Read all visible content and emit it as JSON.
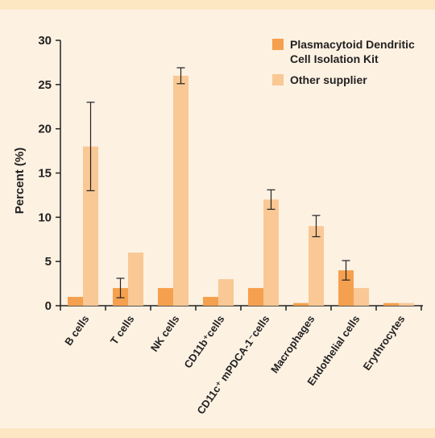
{
  "colors": {
    "background": "#fdf1e2",
    "border_band": "#fde6c2",
    "series_1": "#f5a04e",
    "series_2": "#f9c894",
    "axis": "#222222"
  },
  "chart_data": {
    "type": "bar",
    "ylabel": "Percent (%)",
    "xlabel": "",
    "ylim": [
      0,
      30
    ],
    "yticks": [
      0,
      5,
      10,
      15,
      20,
      25,
      30
    ],
    "grid": false,
    "legend_position": "top-right",
    "categories": [
      "B cells",
      "T cells",
      "NK cells",
      "CD11b⁺cells",
      "CD11c⁺ mPDCA-1⁻cells",
      "Macrophages",
      "Endothelial cells",
      "Erythrocytes"
    ],
    "series": [
      {
        "name": "Plasmacytoid Dendritic Cell Isolation Kit",
        "color": "#f5a04e",
        "values": [
          1,
          2,
          2,
          1,
          2,
          0.3,
          4,
          0.3
        ],
        "errors": [
          0,
          1.1,
          0,
          0,
          0,
          0,
          1.1,
          0
        ]
      },
      {
        "name": "Other supplier",
        "color": "#f9c894",
        "values": [
          18,
          6,
          26,
          3,
          12,
          9,
          2,
          0.3
        ],
        "errors": [
          5,
          0,
          0.9,
          0,
          1.1,
          1.2,
          0,
          0
        ]
      }
    ]
  },
  "legend": {
    "item1_line1": "Plasmacytoid Dendritic",
    "item1_line2": "Cell Isolation Kit",
    "item2": "Other supplier"
  }
}
